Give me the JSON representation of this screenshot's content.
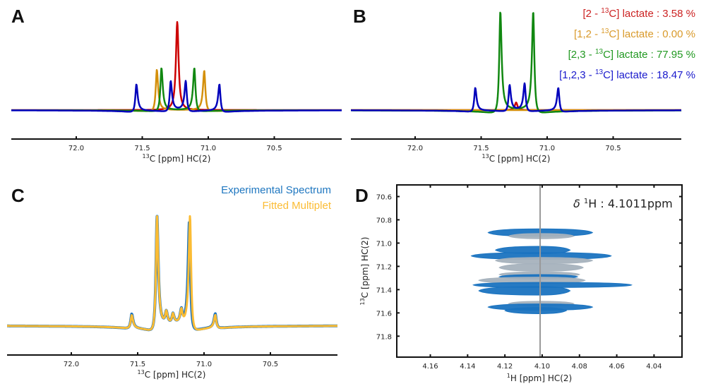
{
  "chart_data": [
    {
      "id": "A",
      "type": "line",
      "panel_label": "A",
      "title": "",
      "xlabel": "13C [ppm] HC(2)",
      "xlabel_sup": "13",
      "xlabel_main": "C [ppm] HC(2)",
      "xlim": [
        72.5,
        70.0
      ],
      "x_reversed": true,
      "xticks": [
        72.0,
        71.5,
        71.0,
        70.5
      ],
      "xtick_labels": [
        "72.0",
        "71.5",
        "71.0",
        "70.5"
      ],
      "grid": false,
      "description": "Simulated 13C multiplets (dispersive line shapes) for lactate isotopomers, unscaled",
      "series": [
        {
          "name": "[2-13C] lactate",
          "color": "#cc0000",
          "peaks": [
            {
              "ppm": 71.235,
              "amp": 1.0
            }
          ],
          "disp": 0.0
        },
        {
          "name": "[1,2-13C] lactate",
          "color": "#d4900c",
          "peaks": [
            {
              "ppm": 71.39,
              "amp": 0.46
            },
            {
              "ppm": 71.03,
              "amp": 0.45
            }
          ],
          "disp": 0.16
        },
        {
          "name": "[2,3-13C] lactate",
          "color": "#118811",
          "peaks": [
            {
              "ppm": 71.355,
              "amp": 0.48
            },
            {
              "ppm": 71.105,
              "amp": 0.48
            }
          ],
          "disp": 0.16
        },
        {
          "name": "[1,2,3-13C] lactate",
          "color": "#0000bb",
          "peaks": [
            {
              "ppm": 71.545,
              "amp": 0.3
            },
            {
              "ppm": 71.285,
              "amp": 0.33
            },
            {
              "ppm": 71.17,
              "amp": 0.33
            },
            {
              "ppm": 70.915,
              "amp": 0.3
            }
          ],
          "disp": 0.22
        }
      ]
    },
    {
      "id": "B",
      "type": "line",
      "panel_label": "B",
      "title": "",
      "xlabel": "13C [ppm] HC(2)",
      "xlabel_sup": "13",
      "xlabel_main": "C [ppm] HC(2)",
      "xlim": [
        72.5,
        70.0
      ],
      "x_reversed": true,
      "xticks": [
        72.0,
        71.5,
        71.0,
        70.5
      ],
      "xtick_labels": [
        "72.0",
        "71.5",
        "71.0",
        "70.5"
      ],
      "grid": false,
      "legend_position": "top-right",
      "legend": [
        {
          "prefix": "[2 - ",
          "sup": "13",
          "suffix": "C] lactate :",
          "value": "3.58 %",
          "color": "#cc2222"
        },
        {
          "prefix": "[1,2 - ",
          "sup": "13",
          "suffix": "C] lactate :",
          "value": "0.00 %",
          "color": "#d99a2b"
        },
        {
          "prefix": "[2,3 - ",
          "sup": "13",
          "suffix": "C] lactate :",
          "value": "77.95 %",
          "color": "#229922"
        },
        {
          "prefix": "[1,2,3 - ",
          "sup": "13",
          "suffix": "C] lactate :",
          "value": "18.47 %",
          "color": "#1a1acc"
        }
      ],
      "fractions_percent": {
        "[2-13C] lactate": 3.58,
        "[1,2-13C] lactate": 0.0,
        "[2,3-13C] lactate": 77.95,
        "[1,2,3-13C] lactate": 18.47
      },
      "series": [
        {
          "name": "[2-13C] lactate",
          "color": "#cc0000",
          "peaks": [
            {
              "ppm": 71.235,
              "amp": 0.1
            }
          ],
          "disp": 0.0
        },
        {
          "name": "[1,2-13C] lactate",
          "color": "#d4900c",
          "peaks": [
            {
              "ppm": 71.39,
              "amp": 0.0
            },
            {
              "ppm": 71.03,
              "amp": 0.0
            }
          ],
          "disp": 0.16
        },
        {
          "name": "[2,3-13C] lactate",
          "color": "#118811",
          "peaks": [
            {
              "ppm": 71.355,
              "amp": 1.3
            },
            {
              "ppm": 71.105,
              "amp": 1.3
            }
          ],
          "disp": 0.16
        },
        {
          "name": "[1,2,3-13C] lactate",
          "color": "#0000bb",
          "peaks": [
            {
              "ppm": 71.545,
              "amp": 0.3
            },
            {
              "ppm": 71.285,
              "amp": 0.33
            },
            {
              "ppm": 71.17,
              "amp": 0.35
            },
            {
              "ppm": 70.915,
              "amp": 0.3
            }
          ],
          "disp": 0.22
        }
      ]
    },
    {
      "id": "C",
      "type": "line",
      "panel_label": "C",
      "title": "",
      "xlabel": "13C [ppm] HC(2)",
      "xlabel_sup": "13",
      "xlabel_main": "C [ppm] HC(2)",
      "xlim": [
        72.5,
        70.0
      ],
      "x_reversed": true,
      "xticks": [
        72.0,
        71.5,
        71.0,
        70.5
      ],
      "xtick_labels": [
        "72.0",
        "71.5",
        "71.0",
        "70.5"
      ],
      "grid": false,
      "legend_position": "top-right",
      "legend": [
        {
          "label": "Experimental Spectrum",
          "color": "#1f77c0"
        },
        {
          "label": "Fitted Multiplet",
          "color": "#fbbc34"
        }
      ],
      "series": [
        {
          "name": "Experimental Spectrum",
          "color": "#1a73c0",
          "peaks": [
            {
              "ppm": 71.545,
              "amp": 0.12
            },
            {
              "ppm": 71.355,
              "amp": 0.95
            },
            {
              "ppm": 71.285,
              "amp": 0.1
            },
            {
              "ppm": 71.235,
              "amp": 0.08
            },
            {
              "ppm": 71.17,
              "amp": 0.11
            },
            {
              "ppm": 71.11,
              "amp": 0.9
            },
            {
              "ppm": 70.915,
              "amp": 0.12
            }
          ],
          "disp": 0.2
        },
        {
          "name": "Fitted Multiplet",
          "color": "#fbbc34",
          "peaks": [
            {
              "ppm": 71.545,
              "amp": 0.11
            },
            {
              "ppm": 71.355,
              "amp": 0.95
            },
            {
              "ppm": 71.285,
              "amp": 0.1
            },
            {
              "ppm": 71.235,
              "amp": 0.08
            },
            {
              "ppm": 71.17,
              "amp": 0.11
            },
            {
              "ppm": 71.105,
              "amp": 0.95
            },
            {
              "ppm": 70.915,
              "amp": 0.11
            }
          ],
          "disp": 0.2
        }
      ]
    },
    {
      "id": "D",
      "type": "contour",
      "panel_label": "D",
      "title": "",
      "xlabel": "1H [ppm] HC(2)",
      "xlabel_sup": "1",
      "xlabel_main": "H [ppm] HC(2)",
      "ylabel": "13C [ppm] HC(2)",
      "ylabel_sup": "13",
      "ylabel_main": "C [ppm] HC(2)",
      "xlim": [
        4.178,
        4.025
      ],
      "ylim": [
        70.5,
        71.98
      ],
      "x_reversed": true,
      "y_reversed": true,
      "xticks": [
        4.16,
        4.14,
        4.12,
        4.1,
        4.08,
        4.06,
        4.04
      ],
      "xtick_labels": [
        "4.16",
        "4.14",
        "4.12",
        "4.10",
        "4.08",
        "4.06",
        "4.04"
      ],
      "yticks": [
        70.6,
        70.8,
        71.0,
        71.2,
        71.4,
        71.6,
        71.8
      ],
      "ytick_labels": [
        "70.6",
        "70.8",
        "71.0",
        "71.2",
        "71.4",
        "71.6",
        "71.8"
      ],
      "grid": false,
      "annotation": {
        "prefix": "δ ",
        "sup": "1",
        "text": "H : 4.1011ppm"
      },
      "cursor_1H_ppm": 4.1011,
      "cursor_color": "#999999",
      "contour_colors": {
        "positive": "#1a73c0",
        "negative": "#a6b2bd"
      },
      "contours": [
        {
          "sign": "positive",
          "c13": 70.91,
          "h_left": 4.129,
          "h_right": 4.073,
          "thick": 0.04
        },
        {
          "sign": "negative",
          "c13": 70.94,
          "h_left": 4.118,
          "h_right": 4.083,
          "thick": 0.02
        },
        {
          "sign": "positive",
          "c13": 71.06,
          "h_left": 4.125,
          "h_right": 4.085,
          "thick": 0.04
        },
        {
          "sign": "positive",
          "c13": 71.11,
          "h_left": 4.138,
          "h_right": 4.063,
          "thick": 0.035
        },
        {
          "sign": "negative",
          "c13": 71.15,
          "h_left": 4.125,
          "h_right": 4.073,
          "thick": 0.03
        },
        {
          "sign": "negative",
          "c13": 71.21,
          "h_left": 4.123,
          "h_right": 4.078,
          "thick": 0.04
        },
        {
          "sign": "negative",
          "c13": 71.27,
          "h_left": 4.123,
          "h_right": 4.08,
          "thick": 0.02
        },
        {
          "sign": "positive",
          "c13": 71.29,
          "h_left": 4.123,
          "h_right": 4.081,
          "thick": 0.015
        },
        {
          "sign": "negative",
          "c13": 71.32,
          "h_left": 4.134,
          "h_right": 4.077,
          "thick": 0.03
        },
        {
          "sign": "positive",
          "c13": 71.36,
          "h_left": 4.137,
          "h_right": 4.052,
          "thick": 0.02
        },
        {
          "sign": "positive",
          "c13": 71.41,
          "h_left": 4.134,
          "h_right": 4.085,
          "thick": 0.05
        },
        {
          "sign": "negative",
          "c13": 71.52,
          "h_left": 4.118,
          "h_right": 4.083,
          "thick": 0.015
        },
        {
          "sign": "positive",
          "c13": 71.55,
          "h_left": 4.129,
          "h_right": 4.073,
          "thick": 0.03
        },
        {
          "sign": "positive",
          "c13": 71.58,
          "h_left": 4.12,
          "h_right": 4.087,
          "thick": 0.03
        }
      ]
    }
  ]
}
